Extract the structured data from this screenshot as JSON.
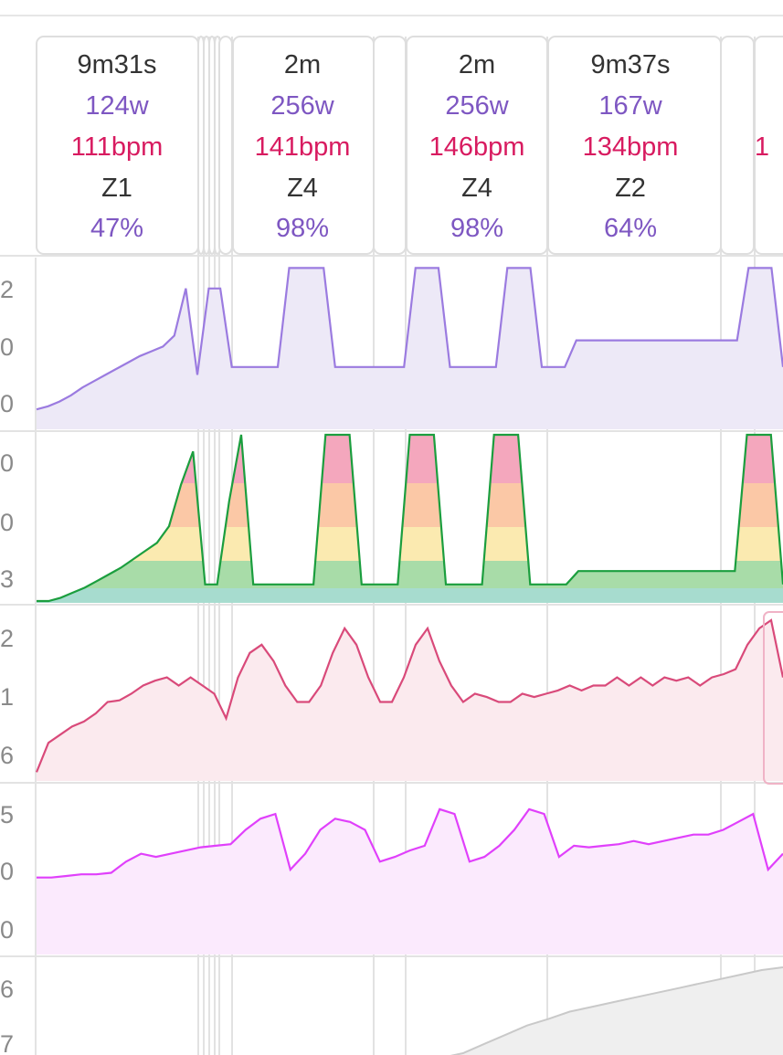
{
  "colors": {
    "power": "#7e57c2",
    "heart_rate": "#d81b60",
    "text": "#333333",
    "cadence": "#e040fb",
    "zone_green": "#1b9e3e",
    "zone_yellow": "#f5d000",
    "zone_orange": "#f57c00",
    "zone_red": "#d81b4c",
    "hr_line": "#d94a7a",
    "altitude": "#c9c9c9"
  },
  "intervals": [
    {
      "duration": "9m31s",
      "power": "124w",
      "heart_rate": "111bpm",
      "zone": "Z1",
      "percent": "47%"
    },
    {
      "duration": "2m",
      "power": "256w",
      "heart_rate": "141bpm",
      "zone": "Z4",
      "percent": "98%"
    },
    {
      "duration": "2m",
      "power": "256w",
      "heart_rate": "146bpm",
      "zone": "Z4",
      "percent": "98%"
    },
    {
      "duration": "9m37s",
      "power": "167w",
      "heart_rate": "134bpm",
      "zone": "Z2",
      "percent": "64%"
    },
    {
      "duration": "",
      "power": "",
      "heart_rate": "1",
      "zone": "",
      "percent": ""
    }
  ],
  "axis_labels": {
    "power": [
      "2",
      "0",
      "0"
    ],
    "zones": [
      "0",
      "0",
      "3"
    ],
    "heart_rate": [
      "2",
      "1",
      "6"
    ],
    "cadence": [
      "5",
      "0",
      "0"
    ],
    "altitude": [
      "6",
      "7"
    ]
  },
  "chart_data": [
    {
      "type": "line",
      "series": [
        {
          "values": [
            0.08,
            0.1,
            0.13,
            0.17,
            0.22,
            0.26,
            0.3,
            0.34,
            0.38,
            0.42,
            0.45,
            0.48,
            0.55,
            0.85,
            0.3,
            0.85,
            0.85,
            0.35,
            0.35,
            0.35,
            0.35,
            0.35,
            0.98,
            0.98,
            0.98,
            0.98,
            0.35,
            0.35,
            0.35,
            0.35,
            0.35,
            0.35,
            0.35,
            0.98,
            0.98,
            0.98,
            0.35,
            0.35,
            0.35,
            0.35,
            0.35,
            0.98,
            0.98,
            0.98,
            0.35,
            0.35,
            0.35,
            0.52,
            0.52,
            0.52,
            0.52,
            0.52,
            0.52,
            0.52,
            0.52,
            0.52,
            0.52,
            0.52,
            0.52,
            0.52,
            0.52,
            0.52,
            0.98,
            0.98,
            0.98,
            0.35
          ]
        }
      ]
    },
    {
      "type": "area",
      "series": [
        {
          "values": [
            0.0,
            0.0,
            0.02,
            0.05,
            0.08,
            0.12,
            0.16,
            0.2,
            0.25,
            0.3,
            0.35,
            0.45,
            0.7,
            0.9,
            0.1,
            0.1,
            0.6,
            1.0,
            0.1,
            0.1,
            0.1,
            0.1,
            0.1,
            0.1,
            1.0,
            1.0,
            1.0,
            0.1,
            0.1,
            0.1,
            0.1,
            1.0,
            1.0,
            1.0,
            0.1,
            0.1,
            0.1,
            0.1,
            1.0,
            1.0,
            1.0,
            0.1,
            0.1,
            0.1,
            0.1,
            0.18,
            0.18,
            0.18,
            0.18,
            0.18,
            0.18,
            0.18,
            0.18,
            0.18,
            0.18,
            0.18,
            0.18,
            0.18,
            0.18,
            1.0,
            1.0,
            1.0,
            0.1
          ]
        }
      ]
    },
    {
      "type": "line",
      "series": [
        {
          "values": [
            0.02,
            0.2,
            0.25,
            0.3,
            0.33,
            0.38,
            0.45,
            0.46,
            0.5,
            0.55,
            0.58,
            0.6,
            0.55,
            0.6,
            0.55,
            0.5,
            0.35,
            0.6,
            0.75,
            0.8,
            0.7,
            0.55,
            0.45,
            0.45,
            0.55,
            0.75,
            0.9,
            0.8,
            0.6,
            0.45,
            0.45,
            0.6,
            0.8,
            0.9,
            0.7,
            0.55,
            0.45,
            0.5,
            0.48,
            0.45,
            0.45,
            0.5,
            0.48,
            0.5,
            0.52,
            0.55,
            0.52,
            0.55,
            0.55,
            0.6,
            0.55,
            0.6,
            0.55,
            0.6,
            0.58,
            0.6,
            0.55,
            0.6,
            0.62,
            0.65,
            0.8,
            0.9,
            0.95,
            0.6
          ]
        }
      ]
    },
    {
      "type": "line",
      "series": [
        {
          "values": [
            0.45,
            0.45,
            0.46,
            0.47,
            0.47,
            0.48,
            0.55,
            0.6,
            0.58,
            0.6,
            0.62,
            0.64,
            0.65,
            0.66,
            0.75,
            0.82,
            0.85,
            0.5,
            0.6,
            0.75,
            0.82,
            0.8,
            0.75,
            0.55,
            0.58,
            0.62,
            0.65,
            0.88,
            0.85,
            0.55,
            0.58,
            0.65,
            0.75,
            0.88,
            0.85,
            0.58,
            0.65,
            0.64,
            0.65,
            0.66,
            0.68,
            0.66,
            0.68,
            0.7,
            0.72,
            0.72,
            0.75,
            0.8,
            0.85,
            0.5,
            0.6
          ]
        }
      ]
    },
    {
      "type": "area",
      "series": [
        {
          "values": [
            0.0,
            0.0,
            0.0,
            0.0,
            0.0,
            0.0,
            0.0,
            0.0,
            0.0,
            0.0,
            0.0,
            0.0,
            0.0,
            0.0,
            0.0,
            0.0,
            0.0,
            0.0,
            0.0,
            0.0,
            0.05,
            0.15,
            0.25,
            0.35,
            0.42,
            0.5,
            0.55,
            0.6,
            0.65,
            0.7,
            0.75,
            0.8,
            0.85,
            0.9,
            0.95,
            0.98
          ]
        }
      ]
    }
  ]
}
